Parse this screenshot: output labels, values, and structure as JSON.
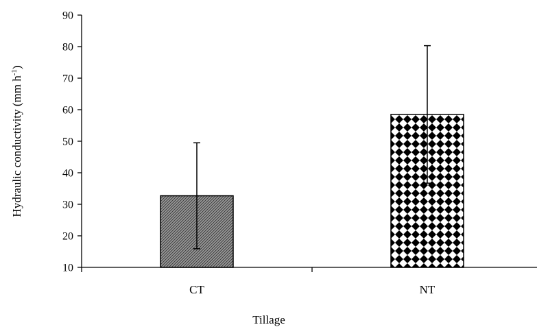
{
  "chart_data": {
    "type": "bar",
    "categories": [
      "CT",
      "NT"
    ],
    "values": [
      32.7,
      58.5
    ],
    "errors": [
      16.8,
      21.8
    ],
    "xlabel": "Tillage",
    "ylabel_main": "Hydraulic conductivity (mm h",
    "ylabel_sup": "-1",
    "ylabel_close": ")",
    "ylim": [
      10,
      90
    ],
    "yticks": [
      "10",
      "20",
      "30",
      "40",
      "50",
      "60",
      "70",
      "80",
      "90"
    ],
    "grid": false,
    "legend": "none",
    "bar_fills": [
      "hatched-gray",
      "checker-black-white"
    ]
  }
}
